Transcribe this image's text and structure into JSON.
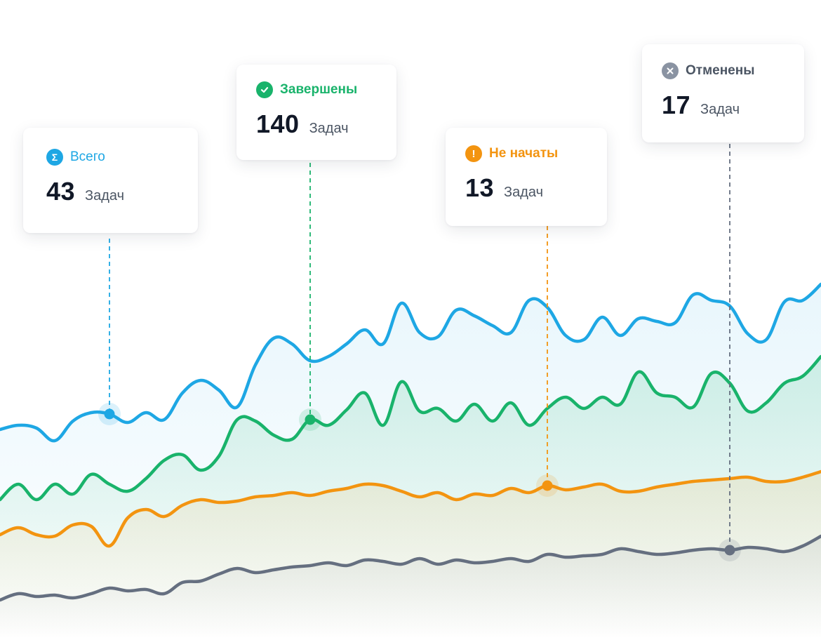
{
  "chart_data": {
    "type": "area",
    "series": [
      {
        "key": "total",
        "color": "#1ea7e4",
        "values": [
          612,
          606,
          610,
          628,
          600,
          588,
          590,
          602,
          588,
          598,
          560,
          542,
          556,
          580,
          520,
          482,
          490,
          514,
          508,
          490,
          470,
          490,
          432,
          474,
          480,
          442,
          450,
          464,
          474,
          428,
          438,
          478,
          484,
          452,
          478,
          454,
          458,
          460,
          420,
          428,
          436,
          476,
          484,
          430,
          428,
          405
        ]
      },
      {
        "key": "completed",
        "color": "#19b36b",
        "values": [
          712,
          690,
          712,
          690,
          704,
          676,
          690,
          700,
          682,
          656,
          648,
          670,
          650,
          598,
          600,
          620,
          626,
          598,
          606,
          584,
          560,
          606,
          544,
          586,
          582,
          600,
          576,
          600,
          574,
          606,
          582,
          566,
          582,
          566,
          576,
          530,
          560,
          566,
          580,
          532,
          546,
          586,
          574,
          546,
          536,
          508
        ]
      },
      {
        "key": "not_started",
        "color": "#f39410",
        "values": [
          762,
          752,
          762,
          764,
          748,
          750,
          778,
          738,
          726,
          736,
          720,
          712,
          716,
          714,
          708,
          706,
          702,
          706,
          700,
          696,
          690,
          692,
          700,
          708,
          702,
          712,
          704,
          706,
          696,
          702,
          692,
          698,
          694,
          690,
          700,
          700,
          694,
          690,
          686,
          684,
          682,
          680,
          686,
          686,
          680,
          672
        ]
      },
      {
        "key": "cancelled",
        "color": "#656f80",
        "values": [
          855,
          846,
          850,
          848,
          852,
          846,
          838,
          842,
          840,
          846,
          830,
          828,
          818,
          810,
          816,
          812,
          808,
          806,
          802,
          806,
          798,
          800,
          804,
          796,
          804,
          798,
          802,
          800,
          796,
          800,
          790,
          794,
          792,
          790,
          782,
          786,
          790,
          788,
          784,
          782,
          784,
          780,
          782,
          786,
          778,
          764
        ]
      }
    ],
    "markers": [
      {
        "series": "total",
        "index": 6
      },
      {
        "series": "completed",
        "index": 17
      },
      {
        "series": "not_started",
        "index": 30
      },
      {
        "series": "cancelled",
        "index": 40
      }
    ]
  },
  "cards": {
    "total": {
      "label": "Всего",
      "value": "43",
      "unit": "Задач",
      "color": "#1ea7e4",
      "icon": "sigma-icon"
    },
    "completed": {
      "label": "Завершены",
      "value": "140",
      "unit": "Задач",
      "color": "#19b36b",
      "icon": "check-icon"
    },
    "not_started": {
      "label": "Не начаты",
      "value": "13",
      "unit": "Задач",
      "color": "#f39410",
      "icon": "exclamation-icon"
    },
    "cancelled": {
      "label": "Отменены",
      "value": "17",
      "unit": "Задач",
      "color": "#8a93a2",
      "icon": "close-icon"
    }
  }
}
